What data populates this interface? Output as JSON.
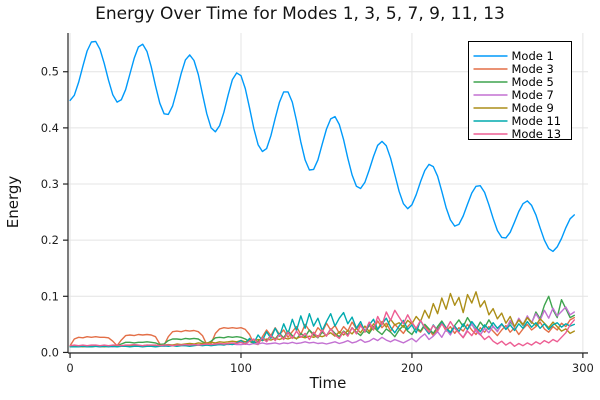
{
  "page": {
    "background": "#FFFFFF"
  },
  "chart_data": {
    "type": "line",
    "title": "Energy Over Time for Modes 1, 3, 5, 7, 9, 11, 13",
    "xlabel": "Time",
    "ylabel": "Energy",
    "xlim": [
      -1.2,
      303
    ],
    "ylim": [
      -0.001,
      0.569
    ],
    "x_ticks": [
      0,
      100,
      200,
      300
    ],
    "x_tick_labels": [
      "0",
      "100",
      "200",
      "300"
    ],
    "y_ticks": [
      0.0,
      0.1,
      0.2,
      0.3,
      0.4,
      0.5
    ],
    "y_tick_labels": [
      "0.0",
      "0.1",
      "0.2",
      "0.3",
      "0.4",
      "0.5"
    ],
    "grid": true,
    "legend_position": "top-right",
    "x_start": 0,
    "x_step": 2.5,
    "colors": {
      "grid": "#e4e4e4",
      "spine": "#242424",
      "tick_label": "#1f1f1f",
      "legend_border": "#000000",
      "legend_bg": "#ffffff"
    },
    "series": [
      {
        "name": "Mode 1",
        "color": "#009AFA",
        "values": [
          0.449,
          0.458,
          0.481,
          0.51,
          0.537,
          0.553,
          0.554,
          0.54,
          0.515,
          0.485,
          0.459,
          0.446,
          0.45,
          0.468,
          0.496,
          0.524,
          0.544,
          0.549,
          0.536,
          0.509,
          0.475,
          0.444,
          0.425,
          0.424,
          0.439,
          0.467,
          0.497,
          0.521,
          0.53,
          0.52,
          0.495,
          0.46,
          0.425,
          0.4,
          0.393,
          0.404,
          0.428,
          0.459,
          0.486,
          0.498,
          0.493,
          0.47,
          0.436,
          0.399,
          0.37,
          0.358,
          0.363,
          0.386,
          0.417,
          0.446,
          0.464,
          0.464,
          0.446,
          0.413,
          0.375,
          0.343,
          0.325,
          0.326,
          0.343,
          0.371,
          0.398,
          0.416,
          0.42,
          0.406,
          0.379,
          0.346,
          0.316,
          0.296,
          0.292,
          0.303,
          0.325,
          0.349,
          0.369,
          0.376,
          0.368,
          0.346,
          0.317,
          0.287,
          0.265,
          0.256,
          0.263,
          0.281,
          0.304,
          0.324,
          0.335,
          0.331,
          0.314,
          0.287,
          0.258,
          0.236,
          0.225,
          0.228,
          0.243,
          0.264,
          0.284,
          0.296,
          0.297,
          0.285,
          0.263,
          0.239,
          0.217,
          0.205,
          0.204,
          0.214,
          0.232,
          0.251,
          0.265,
          0.27,
          0.262,
          0.245,
          0.222,
          0.2,
          0.185,
          0.18,
          0.188,
          0.203,
          0.222,
          0.238,
          0.245
        ]
      },
      {
        "name": "Mode 3",
        "color": "#E36F47",
        "values": [
          0.012,
          0.024,
          0.027,
          0.026,
          0.028,
          0.027,
          0.028,
          0.027,
          0.027,
          0.026,
          0.02,
          0.012,
          0.022,
          0.03,
          0.031,
          0.03,
          0.032,
          0.031,
          0.032,
          0.031,
          0.028,
          0.015,
          0.013,
          0.028,
          0.037,
          0.038,
          0.037,
          0.039,
          0.038,
          0.039,
          0.037,
          0.03,
          0.014,
          0.016,
          0.034,
          0.042,
          0.044,
          0.043,
          0.044,
          0.043,
          0.044,
          0.041,
          0.032,
          0.016,
          0.014,
          0.028,
          0.04,
          0.03,
          0.044,
          0.032,
          0.04,
          0.027,
          0.037,
          0.046,
          0.032,
          0.05,
          0.039,
          0.03,
          0.044,
          0.036,
          0.052,
          0.04,
          0.048,
          0.034,
          0.046,
          0.038,
          0.054,
          0.042,
          0.05,
          0.036,
          0.048,
          0.04,
          0.056,
          0.044,
          0.052,
          0.038,
          0.05,
          0.042,
          0.034,
          0.046,
          0.054,
          0.042,
          0.036,
          0.048,
          0.04,
          0.03,
          0.042,
          0.052,
          0.038,
          0.046,
          0.034,
          0.044,
          0.038,
          0.05,
          0.04,
          0.032,
          0.044,
          0.036,
          0.046,
          0.038,
          0.03,
          0.04,
          0.048,
          0.036,
          0.044,
          0.032,
          0.042,
          0.05,
          0.04,
          0.046,
          0.054,
          0.042,
          0.036,
          0.046,
          0.04,
          0.052,
          0.046,
          0.058,
          0.062
        ]
      },
      {
        "name": "Mode 5",
        "color": "#3EA44E",
        "values": [
          0.011,
          0.012,
          0.011,
          0.012,
          0.011,
          0.012,
          0.012,
          0.011,
          0.012,
          0.012,
          0.011,
          0.012,
          0.015,
          0.018,
          0.018,
          0.017,
          0.018,
          0.018,
          0.019,
          0.018,
          0.017,
          0.014,
          0.015,
          0.021,
          0.024,
          0.024,
          0.023,
          0.025,
          0.024,
          0.025,
          0.024,
          0.019,
          0.016,
          0.02,
          0.026,
          0.027,
          0.026,
          0.028,
          0.027,
          0.028,
          0.027,
          0.024,
          0.02,
          0.016,
          0.02,
          0.026,
          0.021,
          0.03,
          0.024,
          0.034,
          0.026,
          0.038,
          0.03,
          0.024,
          0.034,
          0.028,
          0.04,
          0.032,
          0.026,
          0.036,
          0.03,
          0.042,
          0.034,
          0.028,
          0.038,
          0.032,
          0.044,
          0.036,
          0.03,
          0.04,
          0.034,
          0.046,
          0.038,
          0.032,
          0.042,
          0.036,
          0.028,
          0.04,
          0.048,
          0.038,
          0.032,
          0.044,
          0.038,
          0.05,
          0.042,
          0.034,
          0.046,
          0.056,
          0.044,
          0.036,
          0.048,
          0.058,
          0.046,
          0.062,
          0.05,
          0.04,
          0.054,
          0.044,
          0.058,
          0.046,
          0.038,
          0.05,
          0.042,
          0.054,
          0.046,
          0.058,
          0.048,
          0.062,
          0.052,
          0.072,
          0.06,
          0.084,
          0.1,
          0.076,
          0.062,
          0.094,
          0.078,
          0.062,
          0.066
        ]
      },
      {
        "name": "Mode 7",
        "color": "#C371D2",
        "values": [
          0.01,
          0.011,
          0.01,
          0.011,
          0.01,
          0.011,
          0.011,
          0.01,
          0.011,
          0.011,
          0.01,
          0.011,
          0.011,
          0.012,
          0.011,
          0.012,
          0.012,
          0.011,
          0.012,
          0.012,
          0.011,
          0.012,
          0.011,
          0.012,
          0.013,
          0.012,
          0.013,
          0.012,
          0.013,
          0.014,
          0.013,
          0.014,
          0.013,
          0.014,
          0.013,
          0.014,
          0.015,
          0.014,
          0.015,
          0.014,
          0.014,
          0.015,
          0.014,
          0.016,
          0.015,
          0.017,
          0.015,
          0.016,
          0.017,
          0.015,
          0.017,
          0.016,
          0.018,
          0.016,
          0.017,
          0.019,
          0.017,
          0.018,
          0.016,
          0.017,
          0.015,
          0.017,
          0.019,
          0.016,
          0.018,
          0.021,
          0.017,
          0.019,
          0.023,
          0.018,
          0.02,
          0.025,
          0.021,
          0.027,
          0.022,
          0.019,
          0.023,
          0.02,
          0.017,
          0.021,
          0.025,
          0.019,
          0.027,
          0.033,
          0.023,
          0.029,
          0.037,
          0.027,
          0.041,
          0.031,
          0.047,
          0.035,
          0.027,
          0.041,
          0.051,
          0.037,
          0.031,
          0.043,
          0.035,
          0.047,
          0.037,
          0.051,
          0.041,
          0.057,
          0.045,
          0.061,
          0.049,
          0.065,
          0.053,
          0.069,
          0.057,
          0.075,
          0.061,
          0.079,
          0.065,
          0.073,
          0.081,
          0.067,
          0.072
        ]
      },
      {
        "name": "Mode 9",
        "color": "#AC8E18",
        "values": [
          0.01,
          0.01,
          0.011,
          0.01,
          0.011,
          0.01,
          0.011,
          0.011,
          0.01,
          0.011,
          0.011,
          0.012,
          0.011,
          0.012,
          0.012,
          0.011,
          0.012,
          0.012,
          0.013,
          0.012,
          0.013,
          0.012,
          0.013,
          0.014,
          0.013,
          0.015,
          0.014,
          0.015,
          0.016,
          0.015,
          0.017,
          0.016,
          0.017,
          0.018,
          0.017,
          0.019,
          0.018,
          0.019,
          0.02,
          0.019,
          0.021,
          0.019,
          0.022,
          0.02,
          0.023,
          0.021,
          0.024,
          0.022,
          0.025,
          0.023,
          0.026,
          0.024,
          0.027,
          0.025,
          0.028,
          0.026,
          0.029,
          0.027,
          0.03,
          0.028,
          0.031,
          0.035,
          0.029,
          0.037,
          0.031,
          0.039,
          0.033,
          0.043,
          0.035,
          0.047,
          0.037,
          0.051,
          0.041,
          0.055,
          0.045,
          0.059,
          0.049,
          0.053,
          0.045,
          0.057,
          0.051,
          0.064,
          0.055,
          0.075,
          0.061,
          0.087,
          0.069,
          0.097,
          0.077,
          0.105,
          0.084,
          0.098,
          0.071,
          0.103,
          0.088,
          0.108,
          0.081,
          0.092,
          0.067,
          0.078,
          0.06,
          0.07,
          0.052,
          0.064,
          0.046,
          0.058,
          0.05,
          0.062,
          0.054,
          0.048,
          0.06,
          0.052,
          0.044,
          0.054,
          0.046,
          0.038,
          0.042,
          0.034,
          0.038
        ]
      },
      {
        "name": "Mode 11",
        "color": "#00AAAE",
        "values": [
          0.01,
          0.01,
          0.01,
          0.011,
          0.01,
          0.01,
          0.011,
          0.01,
          0.011,
          0.01,
          0.011,
          0.01,
          0.011,
          0.011,
          0.01,
          0.011,
          0.011,
          0.01,
          0.011,
          0.011,
          0.01,
          0.011,
          0.012,
          0.011,
          0.012,
          0.011,
          0.012,
          0.012,
          0.011,
          0.012,
          0.013,
          0.012,
          0.013,
          0.012,
          0.013,
          0.014,
          0.013,
          0.015,
          0.014,
          0.017,
          0.021,
          0.015,
          0.025,
          0.017,
          0.031,
          0.021,
          0.037,
          0.025,
          0.043,
          0.029,
          0.051,
          0.033,
          0.059,
          0.039,
          0.065,
          0.043,
          0.069,
          0.047,
          0.061,
          0.039,
          0.055,
          0.069,
          0.047,
          0.061,
          0.071,
          0.051,
          0.063,
          0.043,
          0.055,
          0.037,
          0.049,
          0.059,
          0.041,
          0.051,
          0.061,
          0.045,
          0.035,
          0.047,
          0.057,
          0.041,
          0.049,
          0.035,
          0.057,
          0.043,
          0.033,
          0.049,
          0.039,
          0.053,
          0.043,
          0.035,
          0.047,
          0.037,
          0.051,
          0.041,
          0.055,
          0.045,
          0.037,
          0.049,
          0.041,
          0.053,
          0.043,
          0.051,
          0.041,
          0.049,
          0.039,
          0.051,
          0.043,
          0.055,
          0.045,
          0.053,
          0.043,
          0.051,
          0.041,
          0.049,
          0.053,
          0.045,
          0.051,
          0.047,
          0.05
        ]
      },
      {
        "name": "Mode 13",
        "color": "#ED5E93",
        "values": [
          0.012,
          0.013,
          0.012,
          0.013,
          0.012,
          0.013,
          0.013,
          0.012,
          0.013,
          0.012,
          0.013,
          0.013,
          0.012,
          0.013,
          0.013,
          0.014,
          0.013,
          0.012,
          0.013,
          0.013,
          0.013,
          0.012,
          0.013,
          0.013,
          0.012,
          0.013,
          0.013,
          0.014,
          0.013,
          0.014,
          0.013,
          0.014,
          0.015,
          0.014,
          0.015,
          0.016,
          0.015,
          0.016,
          0.017,
          0.016,
          0.018,
          0.015,
          0.02,
          0.024,
          0.017,
          0.026,
          0.019,
          0.03,
          0.021,
          0.032,
          0.023,
          0.036,
          0.025,
          0.038,
          0.027,
          0.034,
          0.023,
          0.036,
          0.027,
          0.04,
          0.029,
          0.042,
          0.031,
          0.025,
          0.037,
          0.029,
          0.044,
          0.033,
          0.048,
          0.037,
          0.054,
          0.041,
          0.064,
          0.049,
          0.072,
          0.057,
          0.075,
          0.063,
          0.051,
          0.067,
          0.053,
          0.043,
          0.057,
          0.045,
          0.036,
          0.048,
          0.038,
          0.051,
          0.041,
          0.055,
          0.043,
          0.035,
          0.026,
          0.038,
          0.03,
          0.042,
          0.032,
          0.023,
          0.029,
          0.02,
          0.015,
          0.02,
          0.013,
          0.018,
          0.011,
          0.016,
          0.012,
          0.017,
          0.013,
          0.019,
          0.015,
          0.021,
          0.017,
          0.023,
          0.019,
          0.027,
          0.035,
          0.049,
          0.058
        ]
      }
    ]
  }
}
